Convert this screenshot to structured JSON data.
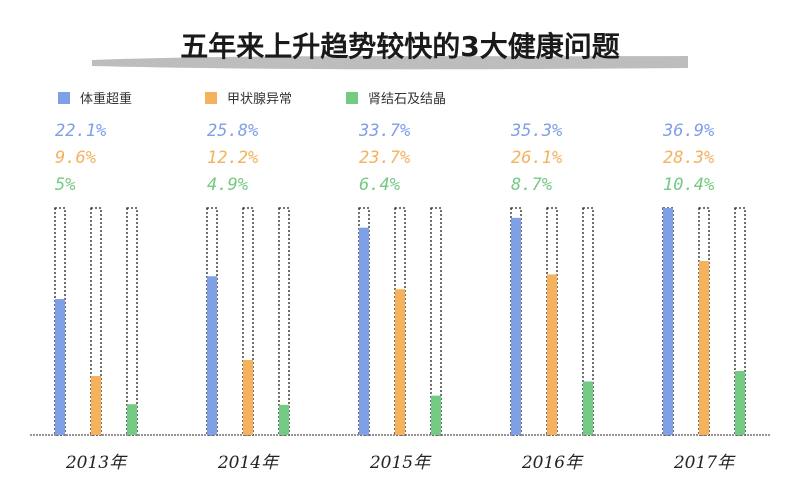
{
  "chart_data": {
    "type": "bar",
    "title": "五年来上升趋势较快的3大健康问题",
    "categories": [
      "2013年",
      "2014年",
      "2015年",
      "2016年",
      "2017年"
    ],
    "ylim": [
      0,
      36.9
    ],
    "grid": false,
    "legend_position": "top-left",
    "series": [
      {
        "name": "体重超重",
        "color": "#7f9fe6",
        "values": [
          22.1,
          25.8,
          33.7,
          35.3,
          36.9
        ],
        "labels": [
          "22.1%",
          "25.8%",
          "33.7%",
          "35.3%",
          "36.9%"
        ]
      },
      {
        "name": "甲状腺异常",
        "color": "#f5b15c",
        "values": [
          9.6,
          12.2,
          23.7,
          26.1,
          28.3
        ],
        "labels": [
          "9.6%",
          "12.2%",
          "23.7%",
          "26.1%",
          "28.3%"
        ]
      },
      {
        "name": "肾结石及结晶",
        "color": "#74c983",
        "values": [
          5,
          4.9,
          6.4,
          8.7,
          10.4
        ],
        "labels": [
          "5%",
          "4.9%",
          "6.4%",
          "8.7%",
          "10.4%"
        ]
      }
    ]
  }
}
